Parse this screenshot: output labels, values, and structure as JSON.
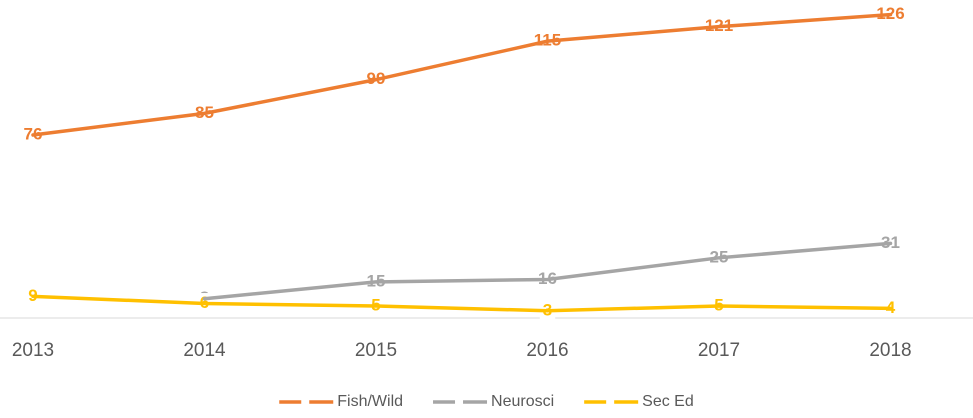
{
  "chart_data": {
    "type": "line",
    "categories": [
      "2013",
      "2014",
      "2015",
      "2016",
      "2017",
      "2018"
    ],
    "series": [
      {
        "name": "Fish/Wild",
        "color": "#ED7D31",
        "values": [
          76,
          85,
          99,
          115,
          121,
          126
        ]
      },
      {
        "name": "Neurosci",
        "color": "#A5A5A5",
        "values": [
          null,
          8,
          15,
          16,
          25,
          31
        ]
      },
      {
        "name": "Sec Ed",
        "color": "#FFC000",
        "values": [
          9,
          6,
          5,
          3,
          5,
          4
        ]
      }
    ],
    "ylim": [
      0,
      130
    ],
    "legend": "bottom"
  }
}
